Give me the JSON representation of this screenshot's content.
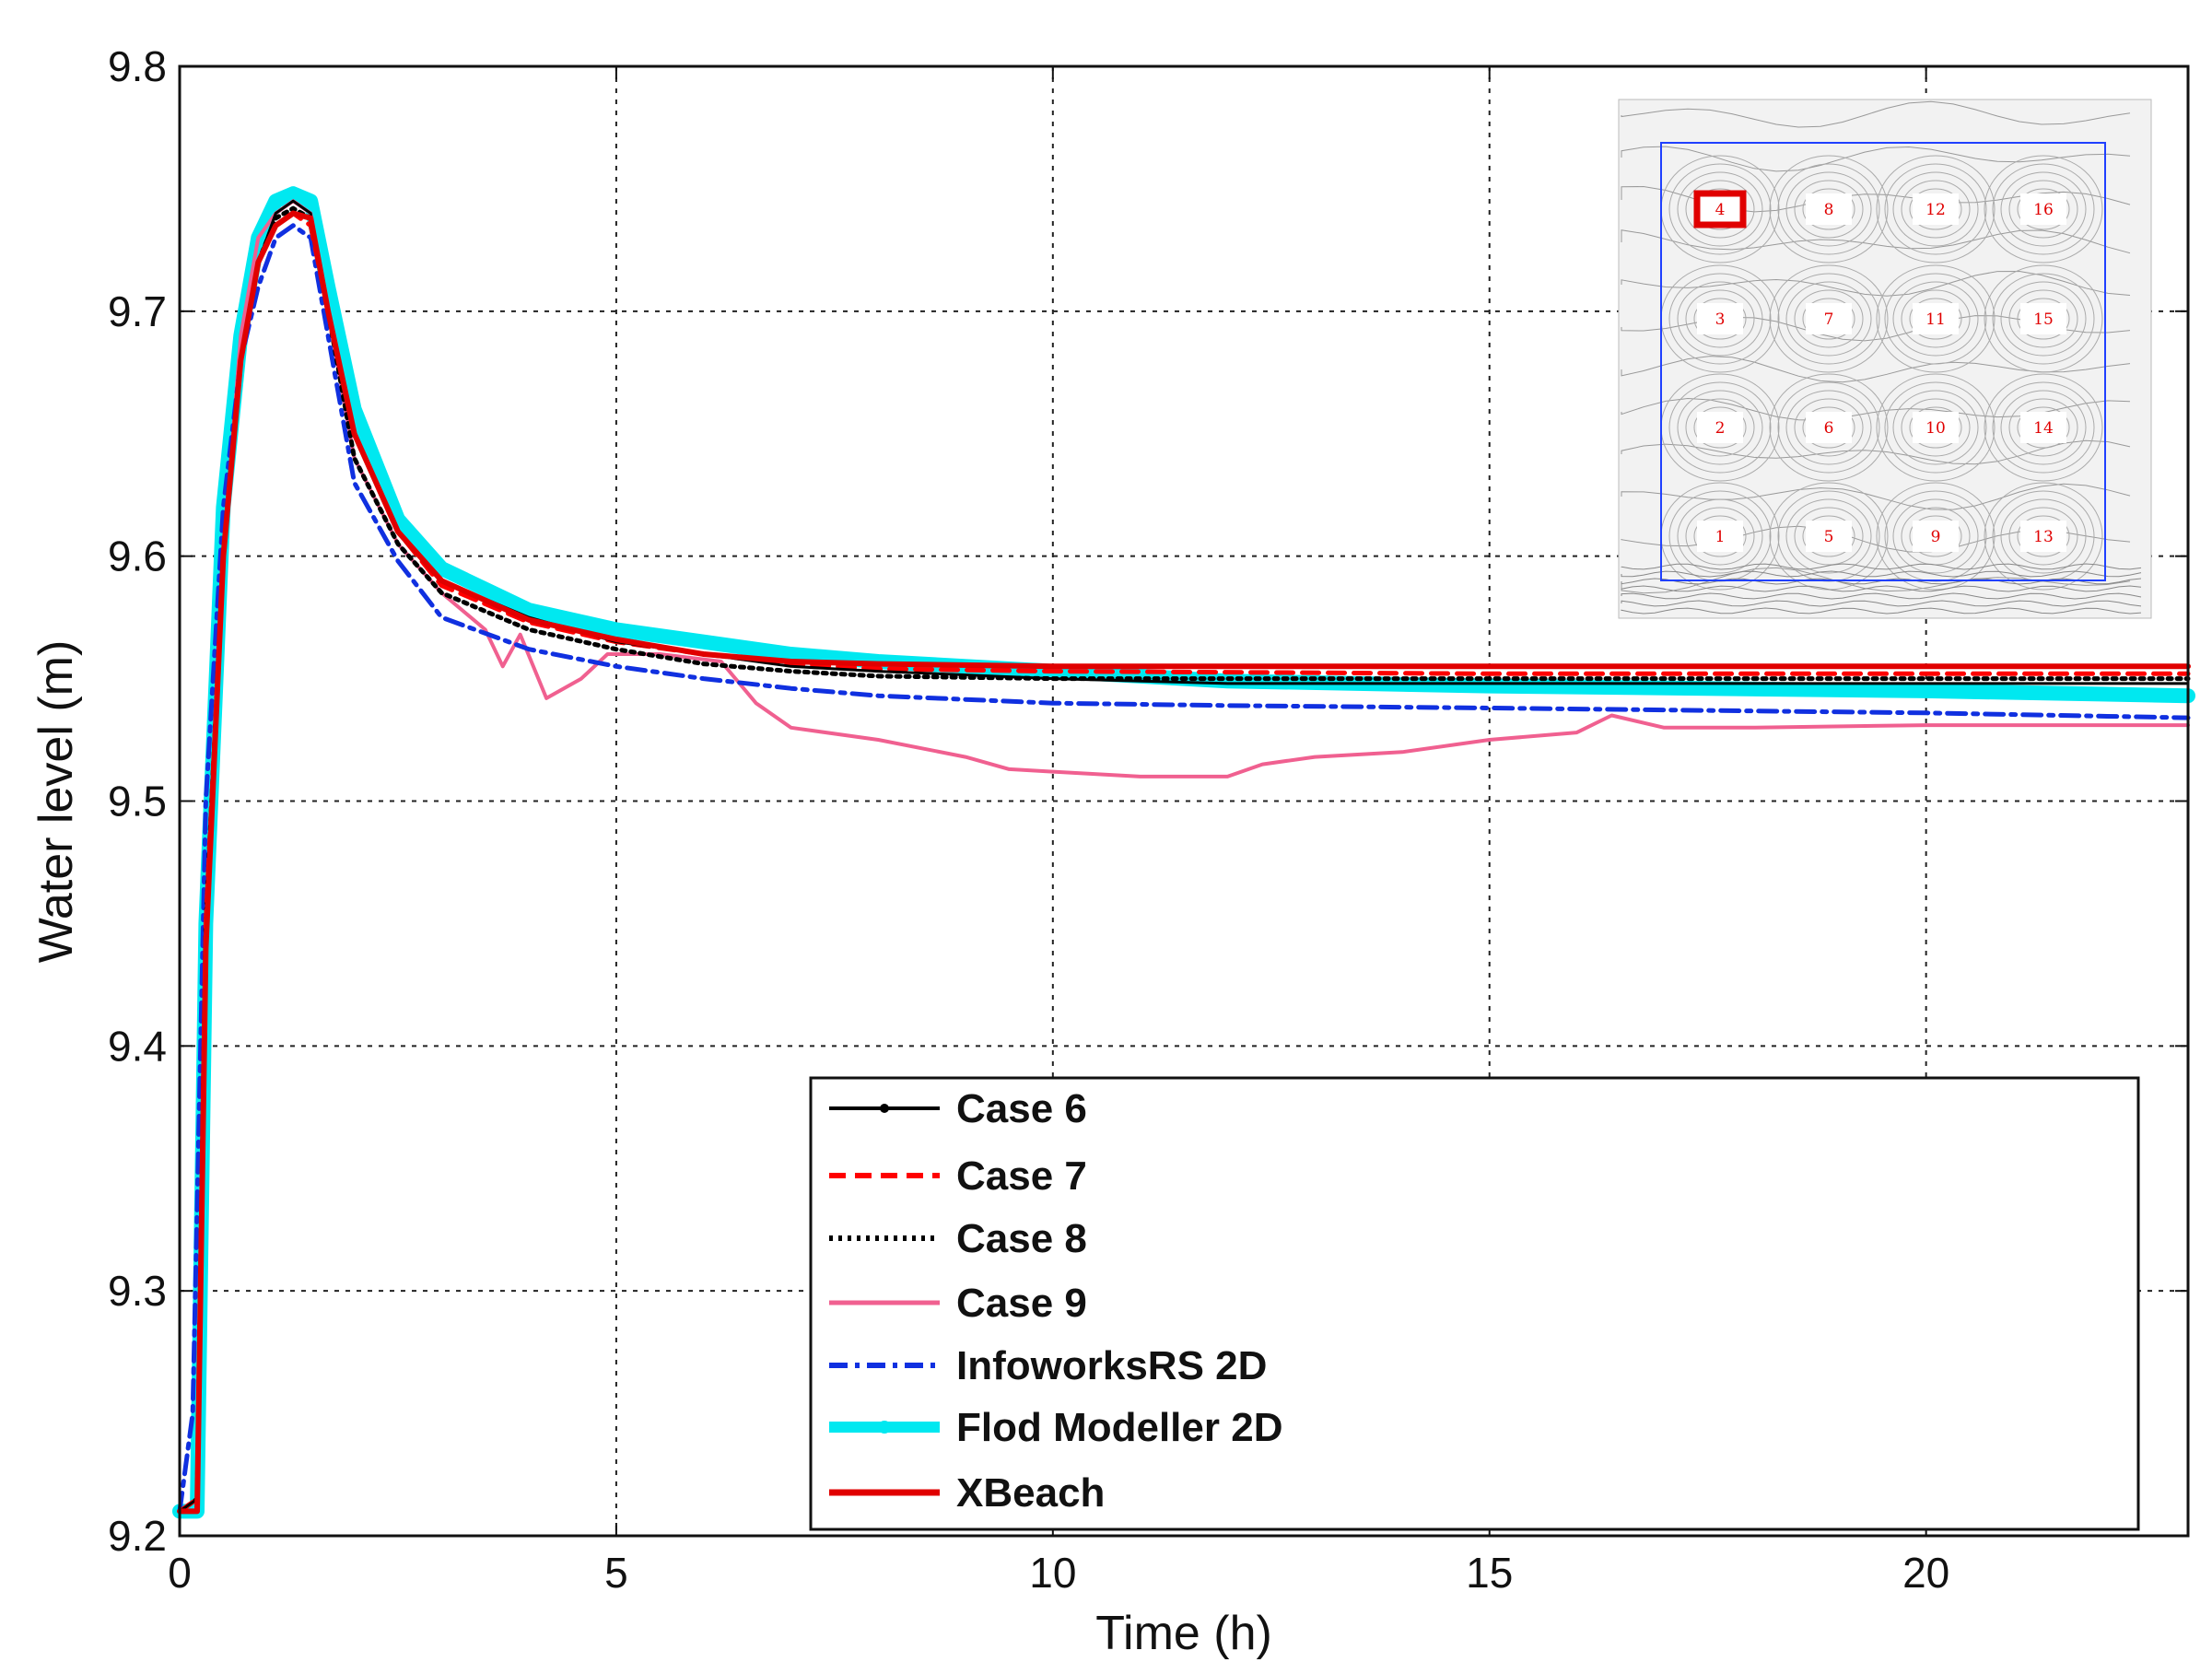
{
  "chart_data": {
    "type": "line",
    "xlabel": "Time (h)",
    "ylabel": "Water level (m)",
    "xlim": [
      0,
      23
    ],
    "ylim": [
      9.2,
      9.8
    ],
    "xticks": [
      0,
      5,
      10,
      15,
      20
    ],
    "yticks": [
      9.2,
      9.3,
      9.4,
      9.5,
      9.6,
      9.7,
      9.8
    ],
    "grid": true,
    "legend_position": "bottom-right",
    "series": [
      {
        "name": "Case 6",
        "color": "#000000",
        "style": "solid-dot-marker",
        "points": [
          [
            0,
            9.21
          ],
          [
            0.2,
            9.215
          ],
          [
            0.3,
            9.45
          ],
          [
            0.5,
            9.6
          ],
          [
            0.7,
            9.68
          ],
          [
            0.9,
            9.72
          ],
          [
            1.1,
            9.74
          ],
          [
            1.3,
            9.745
          ],
          [
            1.5,
            9.74
          ],
          [
            1.7,
            9.7
          ],
          [
            2.0,
            9.65
          ],
          [
            2.5,
            9.61
          ],
          [
            3,
            9.59
          ],
          [
            4,
            9.575
          ],
          [
            5,
            9.565
          ],
          [
            6,
            9.56
          ],
          [
            7,
            9.555
          ],
          [
            8,
            9.553
          ],
          [
            10,
            9.55
          ],
          [
            12,
            9.548
          ],
          [
            15,
            9.548
          ],
          [
            20,
            9.548
          ],
          [
            23,
            9.548
          ]
        ]
      },
      {
        "name": "Case 7",
        "color": "#ff0000",
        "style": "dashed",
        "points": [
          [
            0,
            9.21
          ],
          [
            0.2,
            9.215
          ],
          [
            0.3,
            9.45
          ],
          [
            0.5,
            9.6
          ],
          [
            0.7,
            9.68
          ],
          [
            0.9,
            9.72
          ],
          [
            1.1,
            9.735
          ],
          [
            1.3,
            9.74
          ],
          [
            1.5,
            9.735
          ],
          [
            1.7,
            9.7
          ],
          [
            2.0,
            9.65
          ],
          [
            2.5,
            9.61
          ],
          [
            3,
            9.588
          ],
          [
            4,
            9.573
          ],
          [
            5,
            9.565
          ],
          [
            6,
            9.56
          ],
          [
            7,
            9.556
          ],
          [
            8,
            9.554
          ],
          [
            10,
            9.553
          ],
          [
            15,
            9.552
          ],
          [
            20,
            9.552
          ],
          [
            23,
            9.552
          ]
        ]
      },
      {
        "name": "Case 8",
        "color": "#000000",
        "style": "dotted",
        "points": [
          [
            0,
            9.21
          ],
          [
            0.2,
            9.215
          ],
          [
            0.3,
            9.45
          ],
          [
            0.5,
            9.6
          ],
          [
            0.7,
            9.68
          ],
          [
            0.9,
            9.72
          ],
          [
            1.1,
            9.738
          ],
          [
            1.3,
            9.742
          ],
          [
            1.5,
            9.738
          ],
          [
            1.7,
            9.7
          ],
          [
            2.0,
            9.64
          ],
          [
            2.5,
            9.605
          ],
          [
            3,
            9.585
          ],
          [
            4,
            9.57
          ],
          [
            5,
            9.562
          ],
          [
            6,
            9.556
          ],
          [
            7,
            9.553
          ],
          [
            8,
            9.551
          ],
          [
            10,
            9.55
          ],
          [
            15,
            9.55
          ],
          [
            20,
            9.55
          ],
          [
            23,
            9.55
          ]
        ]
      },
      {
        "name": "Case 9",
        "color": "#f06090",
        "style": "solid",
        "points": [
          [
            0,
            9.21
          ],
          [
            0.2,
            9.215
          ],
          [
            0.3,
            9.45
          ],
          [
            0.5,
            9.6
          ],
          [
            0.7,
            9.69
          ],
          [
            0.9,
            9.73
          ],
          [
            1.1,
            9.74
          ],
          [
            1.3,
            9.745
          ],
          [
            1.5,
            9.74
          ],
          [
            1.7,
            9.7
          ],
          [
            2.0,
            9.64
          ],
          [
            2.5,
            9.605
          ],
          [
            3,
            9.585
          ],
          [
            3.5,
            9.57
          ],
          [
            3.7,
            9.555
          ],
          [
            3.9,
            9.568
          ],
          [
            4.2,
            9.542
          ],
          [
            4.6,
            9.55
          ],
          [
            4.9,
            9.56
          ],
          [
            5.5,
            9.56
          ],
          [
            6.2,
            9.557
          ],
          [
            6.6,
            9.54
          ],
          [
            7,
            9.53
          ],
          [
            8,
            9.525
          ],
          [
            9,
            9.518
          ],
          [
            9.5,
            9.513
          ],
          [
            10,
            9.512
          ],
          [
            11,
            9.51
          ],
          [
            12,
            9.51
          ],
          [
            12.4,
            9.515
          ],
          [
            13,
            9.518
          ],
          [
            14,
            9.52
          ],
          [
            15,
            9.525
          ],
          [
            16,
            9.528
          ],
          [
            16.4,
            9.535
          ],
          [
            17,
            9.53
          ],
          [
            18,
            9.53
          ],
          [
            20,
            9.531
          ],
          [
            23,
            9.531
          ]
        ]
      },
      {
        "name": "InfoworksRS 2D",
        "color": "#1030e0",
        "style": "dash-dot",
        "points": [
          [
            0,
            9.21
          ],
          [
            0.15,
            9.25
          ],
          [
            0.3,
            9.5
          ],
          [
            0.5,
            9.62
          ],
          [
            0.7,
            9.68
          ],
          [
            0.9,
            9.71
          ],
          [
            1.1,
            9.73
          ],
          [
            1.3,
            9.735
          ],
          [
            1.5,
            9.73
          ],
          [
            1.7,
            9.69
          ],
          [
            2.0,
            9.63
          ],
          [
            2.5,
            9.598
          ],
          [
            3,
            9.575
          ],
          [
            4,
            9.562
          ],
          [
            5,
            9.555
          ],
          [
            6,
            9.55
          ],
          [
            7,
            9.546
          ],
          [
            8,
            9.543
          ],
          [
            10,
            9.54
          ],
          [
            12,
            9.539
          ],
          [
            15,
            9.538
          ],
          [
            20,
            9.536
          ],
          [
            23,
            9.534
          ]
        ]
      },
      {
        "name": "Flod Modeller 2D",
        "color": "#00e8f0",
        "style": "thick",
        "points": [
          [
            0,
            9.21
          ],
          [
            0.2,
            9.21
          ],
          [
            0.3,
            9.45
          ],
          [
            0.5,
            9.62
          ],
          [
            0.7,
            9.69
          ],
          [
            0.9,
            9.73
          ],
          [
            1.1,
            9.745
          ],
          [
            1.3,
            9.748
          ],
          [
            1.5,
            9.745
          ],
          [
            1.7,
            9.71
          ],
          [
            2.0,
            9.66
          ],
          [
            2.5,
            9.615
          ],
          [
            3,
            9.595
          ],
          [
            4,
            9.578
          ],
          [
            5,
            9.57
          ],
          [
            6,
            9.565
          ],
          [
            7,
            9.56
          ],
          [
            8,
            9.557
          ],
          [
            10,
            9.553
          ],
          [
            12,
            9.549
          ],
          [
            15,
            9.547
          ],
          [
            20,
            9.545
          ],
          [
            23,
            9.543
          ]
        ]
      },
      {
        "name": "XBeach",
        "color": "#e00000",
        "style": "solid",
        "points": [
          [
            0,
            9.21
          ],
          [
            0.2,
            9.21
          ],
          [
            0.3,
            9.44
          ],
          [
            0.5,
            9.6
          ],
          [
            0.7,
            9.68
          ],
          [
            0.9,
            9.72
          ],
          [
            1.1,
            9.735
          ],
          [
            1.3,
            9.74
          ],
          [
            1.5,
            9.738
          ],
          [
            1.7,
            9.7
          ],
          [
            2.0,
            9.65
          ],
          [
            2.5,
            9.61
          ],
          [
            3,
            9.59
          ],
          [
            4,
            9.574
          ],
          [
            5,
            9.566
          ],
          [
            6,
            9.56
          ],
          [
            7,
            9.557
          ],
          [
            8,
            9.556
          ],
          [
            10,
            9.555
          ],
          [
            15,
            9.555
          ],
          [
            20,
            9.555
          ],
          [
            23,
            9.555
          ]
        ]
      }
    ],
    "inset_labels": [
      [
        "4",
        "8",
        "12",
        "16"
      ],
      [
        "3",
        "7",
        "11",
        "15"
      ],
      [
        "2",
        "6",
        "10",
        "14"
      ],
      [
        "1",
        "5",
        "9",
        "13"
      ]
    ],
    "inset_highlight": "4"
  }
}
